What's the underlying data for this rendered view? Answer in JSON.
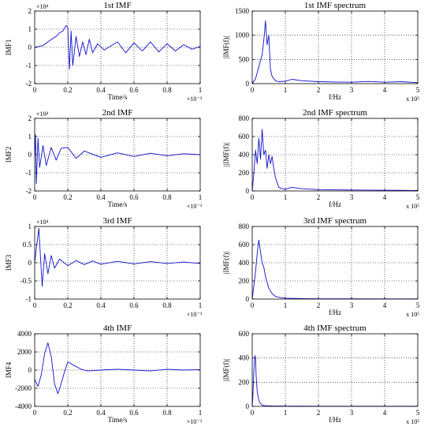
{
  "chart_data": [
    {
      "type": "line",
      "title": "1st IMF",
      "xlabel": "Time/s",
      "ylabel": "IMF1",
      "xlim": [
        0,
        1
      ],
      "ylim": [
        -2,
        2
      ],
      "x_ticks": [
        "0",
        "0.2",
        "0.4",
        "0.6",
        "0.8",
        "1"
      ],
      "y_ticks": [
        "-2",
        "-1",
        "0",
        "1",
        "2"
      ],
      "x_exponent": "×10⁻³",
      "y_exponent": "×10⁴",
      "grid": true,
      "color": "#1010cc",
      "series": [
        {
          "x": [
            0,
            0.05,
            0.08,
            0.11,
            0.13,
            0.15,
            0.17,
            0.19,
            0.2,
            0.21,
            0.22,
            0.23,
            0.25,
            0.27,
            0.29,
            0.31,
            0.33,
            0.35,
            0.38,
            0.42,
            0.5,
            0.55,
            0.6,
            0.65,
            0.7,
            0.75,
            0.8,
            0.85,
            0.9,
            0.95,
            1.0
          ],
          "y": [
            0,
            0.1,
            0.3,
            0.5,
            0.6,
            0.8,
            0.9,
            1.2,
            1.1,
            -1.2,
            0.9,
            -1.0,
            0.6,
            -0.5,
            0.3,
            -0.4,
            0.45,
            -0.3,
            0.2,
            -0.15,
            0.3,
            -0.3,
            0.25,
            -0.2,
            0.3,
            -0.25,
            0.2,
            -0.2,
            0.15,
            -0.1,
            0.05
          ]
        }
      ]
    },
    {
      "type": "line",
      "title": "1st IMF spectrum",
      "xlabel": "f/Hz",
      "ylabel": "|IMF(f)|",
      "xlim": [
        0,
        5
      ],
      "ylim": [
        0,
        1500
      ],
      "x_ticks": [
        "0",
        "1",
        "2",
        "3",
        "4",
        "5"
      ],
      "y_ticks": [
        "0",
        "500",
        "1000",
        "1500"
      ],
      "x_exponent": "x 10⁵",
      "grid": true,
      "color": "#1010cc",
      "series": [
        {
          "x": [
            0,
            0.1,
            0.2,
            0.3,
            0.35,
            0.4,
            0.45,
            0.5,
            0.55,
            0.6,
            0.7,
            0.8,
            1.0,
            1.2,
            1.5,
            2.0,
            2.5,
            3.0,
            3.5,
            4.0,
            4.5,
            5.0
          ],
          "y": [
            0,
            100,
            350,
            600,
            900,
            1300,
            800,
            1000,
            300,
            150,
            60,
            40,
            50,
            90,
            60,
            40,
            35,
            30,
            45,
            30,
            40,
            20
          ]
        }
      ]
    },
    {
      "type": "line",
      "title": "2nd IMF",
      "xlabel": "Time/s",
      "ylabel": "IMF2",
      "xlim": [
        0,
        1
      ],
      "ylim": [
        -2,
        2
      ],
      "x_ticks": [
        "0",
        "0.2",
        "0.4",
        "0.6",
        "0.8",
        "1"
      ],
      "y_ticks": [
        "-2",
        "-1",
        "0",
        "1",
        "2"
      ],
      "x_exponent": "×10⁻³",
      "y_exponent": "×10⁴",
      "grid": true,
      "color": "#1010cc",
      "series": [
        {
          "x": [
            0,
            0.005,
            0.01,
            0.02,
            0.03,
            0.05,
            0.07,
            0.1,
            0.13,
            0.16,
            0.2,
            0.25,
            0.3,
            0.4,
            0.5,
            0.6,
            0.7,
            0.8,
            0.9,
            1.0
          ],
          "y": [
            0,
            1.1,
            -1.6,
            0.9,
            -0.7,
            0.5,
            -0.6,
            0.4,
            -0.3,
            0.35,
            0.4,
            -0.2,
            0.2,
            -0.15,
            0.1,
            -0.1,
            0.08,
            -0.06,
            0.05,
            0.0
          ]
        }
      ]
    },
    {
      "type": "line",
      "title": "2nd IMF spectrum",
      "xlabel": "f/Hz",
      "ylabel": "||IMF(f)|",
      "xlim": [
        0,
        5
      ],
      "ylim": [
        0,
        800
      ],
      "x_ticks": [
        "0",
        "1",
        "2",
        "3",
        "4",
        "5"
      ],
      "y_ticks": [
        "0",
        "200",
        "400",
        "600",
        "800"
      ],
      "x_exponent": "x 10⁵",
      "grid": true,
      "color": "#1010cc",
      "series": [
        {
          "x": [
            0,
            0.05,
            0.1,
            0.15,
            0.2,
            0.25,
            0.3,
            0.35,
            0.4,
            0.45,
            0.5,
            0.55,
            0.6,
            0.65,
            0.7,
            0.8,
            0.9,
            1.0,
            1.2,
            1.5,
            2.0,
            3.0,
            4.0,
            5.0
          ],
          "y": [
            0,
            200,
            450,
            300,
            580,
            350,
            680,
            400,
            450,
            250,
            400,
            300,
            380,
            250,
            150,
            40,
            25,
            20,
            40,
            25,
            15,
            10,
            8,
            5
          ]
        }
      ]
    },
    {
      "type": "line",
      "title": "3rd IMF",
      "xlabel": "",
      "ylabel": "IMF3",
      "xlim": [
        0,
        1
      ],
      "ylim": [
        -1,
        1
      ],
      "x_ticks": [
        "0",
        "0.2",
        "0.4",
        "0.6",
        "0.8",
        "1"
      ],
      "y_ticks": [
        "-1",
        "-0.5",
        "0",
        "0.5",
        "1"
      ],
      "x_exponent": "×10⁻³",
      "y_exponent": "×10⁴",
      "grid": true,
      "color": "#1010cc",
      "series": [
        {
          "x": [
            0,
            0.01,
            0.025,
            0.045,
            0.06,
            0.08,
            0.1,
            0.12,
            0.15,
            0.2,
            0.25,
            0.3,
            0.35,
            0.4,
            0.5,
            0.6,
            0.7,
            0.8,
            0.9,
            1.0
          ],
          "y": [
            0,
            0.4,
            0.95,
            -0.65,
            0.25,
            -0.3,
            0.2,
            -0.15,
            0.1,
            -0.08,
            0.06,
            -0.05,
            0.05,
            -0.04,
            0.04,
            -0.03,
            0.03,
            -0.02,
            0.02,
            -0.02
          ]
        }
      ]
    },
    {
      "type": "line",
      "title": "3rd IMF spectrum",
      "xlabel": "f/Hz",
      "ylabel": "|IMF(f)|",
      "xlim": [
        0,
        5
      ],
      "ylim": [
        0,
        800
      ],
      "x_ticks": [
        "0",
        "1",
        "2",
        "3",
        "4",
        "5"
      ],
      "y_ticks": [
        "0",
        "200",
        "400",
        "600",
        "800"
      ],
      "x_exponent": "x 10⁵",
      "grid": true,
      "color": "#1010cc",
      "series": [
        {
          "x": [
            0,
            0.05,
            0.1,
            0.15,
            0.2,
            0.25,
            0.3,
            0.35,
            0.4,
            0.5,
            0.6,
            0.7,
            0.8,
            1.0,
            1.5,
            2.0,
            3.0,
            4.0,
            5.0
          ],
          "y": [
            0,
            150,
            300,
            500,
            650,
            520,
            400,
            350,
            250,
            120,
            60,
            30,
            20,
            10,
            5,
            3,
            3,
            2,
            2
          ]
        }
      ]
    },
    {
      "type": "line",
      "title": "4th IMF",
      "xlabel": "Time/s",
      "ylabel": "IMF4",
      "xlim": [
        0,
        1
      ],
      "ylim": [
        -4000,
        4000
      ],
      "x_ticks": [
        "0",
        "0.2",
        "0.4",
        "0.6",
        "0.8",
        "1"
      ],
      "y_ticks": [
        "-4000",
        "-2000",
        "0",
        "2000",
        "4000"
      ],
      "x_exponent": "×10⁻³",
      "grid": true,
      "color": "#1010cc",
      "series": [
        {
          "x": [
            0,
            0.02,
            0.04,
            0.06,
            0.08,
            0.1,
            0.12,
            0.14,
            0.16,
            0.18,
            0.2,
            0.24,
            0.28,
            0.32,
            0.4,
            0.5,
            0.6,
            0.7,
            0.8,
            0.9,
            1.0
          ],
          "y": [
            -1000,
            -1800,
            -500,
            1800,
            3000,
            1500,
            -1500,
            -2600,
            -1500,
            -200,
            900,
            500,
            100,
            -100,
            0,
            100,
            0,
            -100,
            100,
            0,
            50
          ]
        }
      ]
    },
    {
      "type": "line",
      "title": "4th IMF spectrum",
      "xlabel": "f/Hz",
      "ylabel": "|IMF(f)|",
      "xlim": [
        0,
        5
      ],
      "ylim": [
        0,
        600
      ],
      "x_ticks": [
        "0",
        "1",
        "2",
        "3",
        "4",
        "5"
      ],
      "y_ticks": [
        "0",
        "200",
        "400",
        "600"
      ],
      "x_exponent": "x 10⁵",
      "grid": true,
      "color": "#1010cc",
      "series": [
        {
          "x": [
            0,
            0.02,
            0.05,
            0.08,
            0.1,
            0.12,
            0.15,
            0.2,
            0.25,
            0.3,
            0.4,
            0.6,
            1.0,
            2.0,
            3.0,
            4.0,
            5.0
          ],
          "y": [
            0,
            80,
            300,
            420,
            400,
            250,
            120,
            50,
            25,
            10,
            5,
            3,
            2,
            1,
            1,
            1,
            1
          ]
        }
      ]
    }
  ]
}
